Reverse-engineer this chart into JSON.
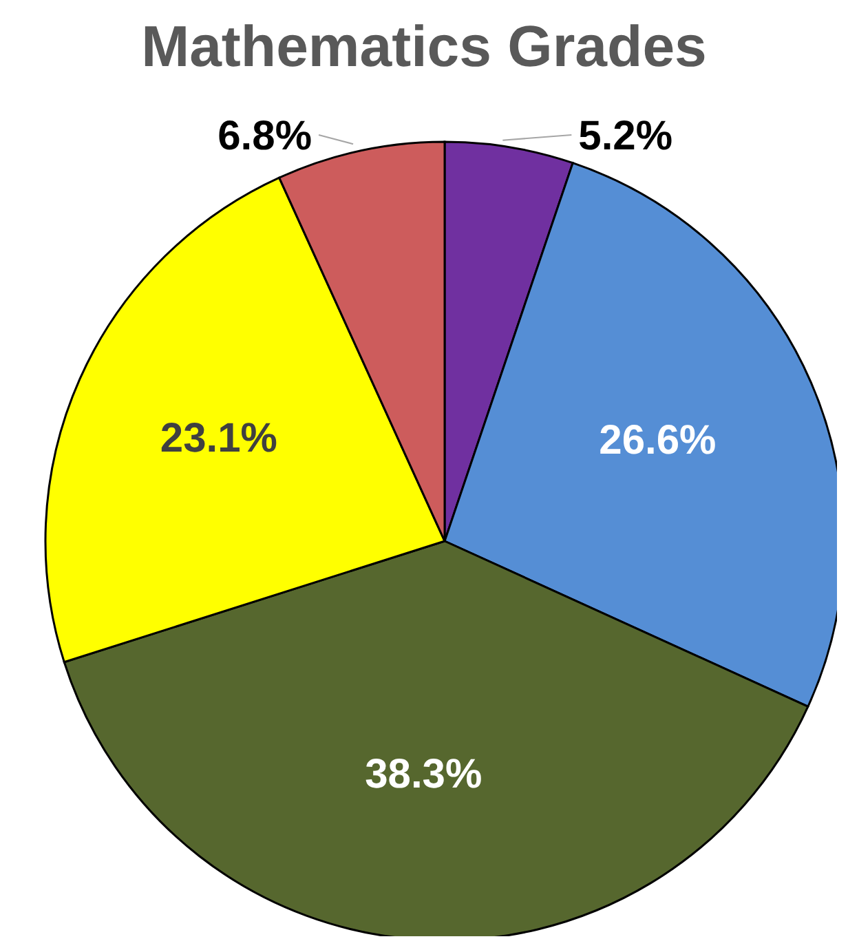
{
  "chart_data": {
    "type": "pie",
    "title": "Mathematics Grades",
    "categories": [
      null,
      null,
      null,
      null,
      null
    ],
    "values": [
      5.2,
      26.6,
      38.3,
      23.1,
      6.8
    ],
    "colors": [
      "#7030a0",
      "#558ed5",
      "#56672e",
      "#ffff00",
      "#cd5c5c"
    ],
    "value_labels": [
      "5.2%",
      "26.6%",
      "38.3%",
      "23.1%",
      "6.8%"
    ],
    "legend": false
  }
}
